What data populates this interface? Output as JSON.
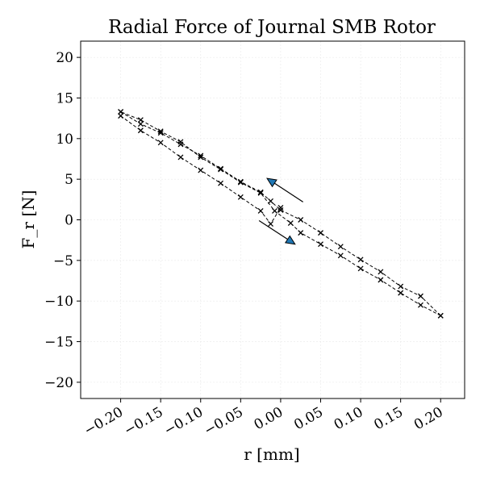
{
  "chart_data": {
    "type": "line",
    "title": "Radial Force of Journal SMB Rotor",
    "xlabel": "r [mm]",
    "ylabel": "F_r [N]",
    "xlim": [
      -0.25,
      0.23
    ],
    "ylim": [
      -22,
      22
    ],
    "xticks": [
      -0.2,
      -0.15,
      -0.1,
      -0.05,
      0.0,
      0.05,
      0.1,
      0.15,
      0.2
    ],
    "xtick_labels": [
      "−0.20",
      "−0.15",
      "−0.10",
      "−0.05",
      "0.00",
      "0.05",
      "0.10",
      "0.15",
      "0.20"
    ],
    "yticks": [
      -20,
      -15,
      -10,
      -5,
      0,
      5,
      10,
      15,
      20
    ],
    "ytick_labels": [
      "−20",
      "−15",
      "−10",
      "−5",
      "0",
      "5",
      "10",
      "15",
      "20"
    ],
    "grid": true,
    "marker": "x",
    "line_color": "#000000",
    "arrow_color": "#1f77b4",
    "series": [
      {
        "x": [
          -0.2,
          -0.175,
          -0.15,
          -0.125,
          -0.1,
          -0.075,
          -0.05,
          -0.025,
          -0.0125,
          0.0,
          0.025,
          0.05,
          0.075,
          0.1,
          0.125,
          0.15,
          0.175,
          0.2
        ],
        "y": [
          13.3,
          11.8,
          10.7,
          9.3,
          7.9,
          6.3,
          4.7,
          3.4,
          2.3,
          1.2,
          0.0,
          -1.6,
          -3.3,
          -4.9,
          -6.4,
          -8.2,
          -9.4,
          -11.8
        ]
      },
      {
        "x": [
          0.2,
          0.175,
          0.15,
          0.125,
          0.1,
          0.075,
          0.05,
          0.025,
          0.0125,
          -0.0075,
          -0.025,
          -0.05,
          -0.075,
          -0.1,
          -0.125,
          -0.15,
          -0.175,
          -0.2
        ],
        "y": [
          -11.8,
          -10.5,
          -9.0,
          -7.4,
          -6.0,
          -4.4,
          -3.0,
          -1.6,
          -0.4,
          1.1,
          3.3,
          4.6,
          6.2,
          7.7,
          9.6,
          10.9,
          12.3,
          13.3
        ]
      },
      {
        "x": [
          -0.2,
          -0.175,
          -0.15,
          -0.125,
          -0.1,
          -0.075,
          -0.05,
          -0.025,
          -0.0125,
          0.0
        ],
        "y": [
          12.8,
          11.0,
          9.5,
          7.7,
          6.1,
          4.5,
          2.8,
          1.1,
          -0.5,
          1.5
        ]
      }
    ],
    "arrows": [
      {
        "from": [
          0.028,
          2.2
        ],
        "to": [
          -0.017,
          5.1
        ]
      },
      {
        "from": [
          -0.027,
          -0.1
        ],
        "to": [
          0.018,
          -3.0
        ]
      }
    ]
  }
}
